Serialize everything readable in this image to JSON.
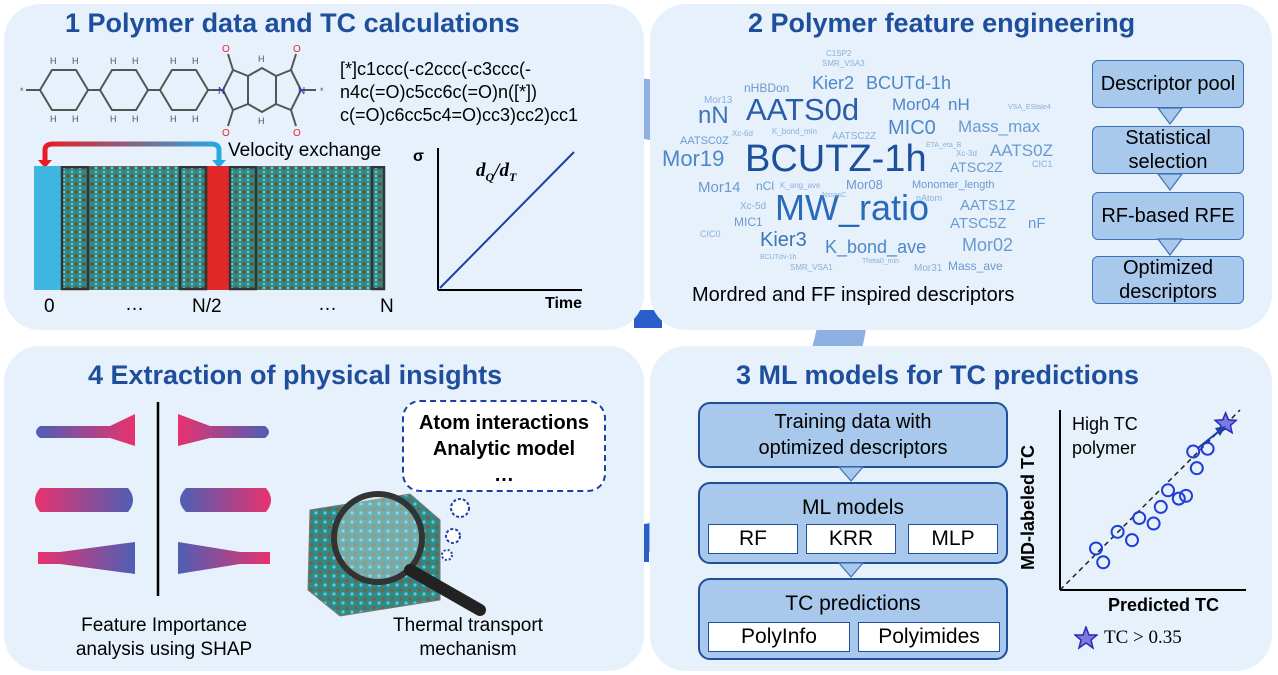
{
  "panel1": {
    "title": "1 Polymer data and TC calculations",
    "smiles": [
      "[*]c1ccc(-c2ccc(-c3ccc(-",
      "n4c(=O)c5cc6c(=O)n([*])",
      "c(=O)c6cc5c4=O)cc3)cc2)cc1"
    ],
    "velocity_label": "Velocity exchange",
    "sim_axis": [
      "0",
      "…",
      "N/2",
      "…",
      "N"
    ],
    "plot": {
      "ylabel": "σ",
      "xlabel": "Time",
      "formula_num": "Q",
      "formula_den": "T"
    }
  },
  "panel2": {
    "title": "2 Polymer feature engineering",
    "steps": [
      "Descriptor pool",
      "Statistical selection",
      "RF-based RFE",
      "Optimized descriptors"
    ],
    "caption": "Mordred and FF inspired descriptors",
    "words": {
      "bcutz": "BCUTZ-1h",
      "mwratio": "MW_ratio",
      "aats0d": "AATS0d",
      "mor19": "Mor19",
      "nn": "nN",
      "kier3": "Kier3",
      "kbond": "K_bond_ave",
      "kier2": "Kier2",
      "bcutd": "BCUTd-1h",
      "mic0": "MIC0",
      "mor04": "Mor04",
      "nh": "nH",
      "massmax": "Mass_max",
      "aats0z": "AATS0Z",
      "atsc2z": "ATSC2Z",
      "aats1z": "AATS1Z",
      "atsc5z": "ATSC5Z",
      "nf": "nF",
      "mor02": "Mor02",
      "mor14": "Mor14",
      "ncl": "nCl",
      "mor08": "Mor08",
      "nhbdon": "nHBDon",
      "aatsc0z": "AATSC0Z",
      "monlen": "Monomer_length",
      "massave": "Mass_ave",
      "mic1": "MIC1",
      "mor31": "Mor31",
      "mor13": "Mor13",
      "aatsc2z": "AATSC2Z",
      "xc5d": "Xc-5d",
      "natom": "nAtom",
      "c1sp2": "C1SP2",
      "smrvsa3": "SMR_VSA3",
      "cic1": "CIC1",
      "cic0": "CIC0",
      "xc3d": "Xc-3d",
      "kangave": "K_ang_ave",
      "kbondmin": "K_bond_min",
      "vsaestate4": "VSA_EState4",
      "theta0min": "Theta0_min",
      "etaetab": "ETA_eta_B",
      "smrvsa1": "SMR_VSA1",
      "bcutdm1h": "BCUTdv-1h",
      "xc6d": "Xc-6d",
      "nssssc": "NssssC"
    }
  },
  "panel3": {
    "title": "3 ML models for TC predictions",
    "training": "Training data with optimized descriptors",
    "ml_title": "ML models",
    "models": [
      "RF",
      "KRR",
      "MLP"
    ],
    "tc_title": "TC predictions",
    "datasets": [
      "PolyInfo",
      "Polyimides"
    ],
    "scatter": {
      "ylabel": "MD-labeled TC",
      "xlabel": "Predicted TC",
      "annotation": "High TC polymer",
      "legend": "TC > 0.35"
    }
  },
  "panel4": {
    "title": "4 Extraction of physical insights",
    "thought_lines": [
      "Atom interactions",
      "Analytic model",
      "…"
    ],
    "shap_caption": [
      "Feature Importance",
      "analysis using SHAP"
    ],
    "mech_caption": [
      "Thermal transport",
      "mechanism"
    ]
  },
  "colors": {
    "title": "#1f4e9c",
    "panel": "#e6f1fb",
    "arrow": "#8db1e3",
    "box": "#a8c8ec",
    "pink": "#e8326e",
    "blue": "#4d5fb5"
  },
  "chart_data": {
    "type": "scatter",
    "xlabel": "Predicted TC",
    "ylabel": "MD-labeled TC",
    "series": [
      {
        "name": "",
        "x": [
          0.1,
          0.12,
          0.16,
          0.2,
          0.22,
          0.26,
          0.28,
          0.3,
          0.33,
          0.35,
          0.37,
          0.38,
          0.41
        ],
        "y": [
          0.15,
          0.1,
          0.21,
          0.18,
          0.26,
          0.24,
          0.3,
          0.36,
          0.33,
          0.34,
          0.5,
          0.44,
          0.51
        ]
      },
      {
        "name": "TC > 0.35",
        "x": [
          0.46
        ],
        "y": [
          0.6
        ]
      }
    ]
  }
}
